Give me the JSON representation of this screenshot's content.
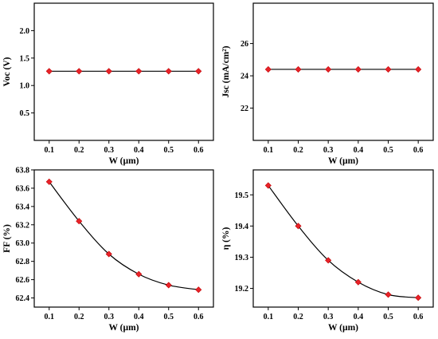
{
  "figure": {
    "marker_color": "#e8232a",
    "line_color": "#000000"
  },
  "chart_data": [
    {
      "type": "line",
      "xlabel": "W (µm)",
      "ylabel": "Voc (V)",
      "x": [
        0.1,
        0.2,
        0.3,
        0.4,
        0.5,
        0.6
      ],
      "series": [
        {
          "values": [
            1.26,
            1.26,
            1.26,
            1.26,
            1.26,
            1.26
          ]
        }
      ],
      "xlim": [
        0.05,
        0.65
      ],
      "ylim": [
        0.0,
        2.5
      ],
      "xticks": [
        "0.1",
        "0.2",
        "0.3",
        "0.4",
        "0.5",
        "0.6"
      ],
      "yticks": [
        "0.5",
        "1.0",
        "1.5",
        "2.0"
      ],
      "ytick_values": [
        0.5,
        1.0,
        1.5,
        2.0
      ],
      "grid": false
    },
    {
      "type": "line",
      "xlabel": "W (µm)",
      "ylabel": "Jsc (mA/cm²)",
      "x": [
        0.1,
        0.2,
        0.3,
        0.4,
        0.5,
        0.6
      ],
      "series": [
        {
          "values": [
            24.4,
            24.4,
            24.4,
            24.4,
            24.4,
            24.4
          ]
        }
      ],
      "xlim": [
        0.05,
        0.65
      ],
      "ylim": [
        20.0,
        28.5
      ],
      "xticks": [
        "0.1",
        "0.2",
        "0.3",
        "0.4",
        "0.5",
        "0.6"
      ],
      "yticks": [
        "22",
        "24",
        "26"
      ],
      "ytick_values": [
        22,
        24,
        26
      ],
      "grid": false
    },
    {
      "type": "line",
      "xlabel": "W (µm)",
      "ylabel": "FF (%)",
      "x": [
        0.1,
        0.2,
        0.3,
        0.4,
        0.5,
        0.6
      ],
      "series": [
        {
          "values": [
            63.67,
            63.24,
            62.88,
            62.66,
            62.54,
            62.49
          ]
        }
      ],
      "xlim": [
        0.05,
        0.65
      ],
      "ylim": [
        62.3,
        63.8
      ],
      "xticks": [
        "0.1",
        "0.2",
        "0.3",
        "0.4",
        "0.5",
        "0.6"
      ],
      "yticks": [
        "62.4",
        "62.6",
        "62.8",
        "63.0",
        "63.2",
        "63.4",
        "63.6",
        "63.8"
      ],
      "ytick_values": [
        62.4,
        62.6,
        62.8,
        63.0,
        63.2,
        63.4,
        63.6,
        63.8
      ],
      "grid": false
    },
    {
      "type": "line",
      "xlabel": "W (µm)",
      "ylabel": "η (%)",
      "x": [
        0.1,
        0.2,
        0.3,
        0.4,
        0.5,
        0.6
      ],
      "series": [
        {
          "values": [
            19.53,
            19.4,
            19.29,
            19.22,
            19.18,
            19.17
          ]
        }
      ],
      "xlim": [
        0.05,
        0.65
      ],
      "ylim": [
        19.14,
        19.58
      ],
      "xticks": [
        "0.1",
        "0.2",
        "0.3",
        "0.4",
        "0.5",
        "0.6"
      ],
      "yticks": [
        "19.2",
        "19.3",
        "19.4",
        "19.5"
      ],
      "ytick_values": [
        19.2,
        19.3,
        19.4,
        19.5
      ],
      "grid": false
    }
  ]
}
